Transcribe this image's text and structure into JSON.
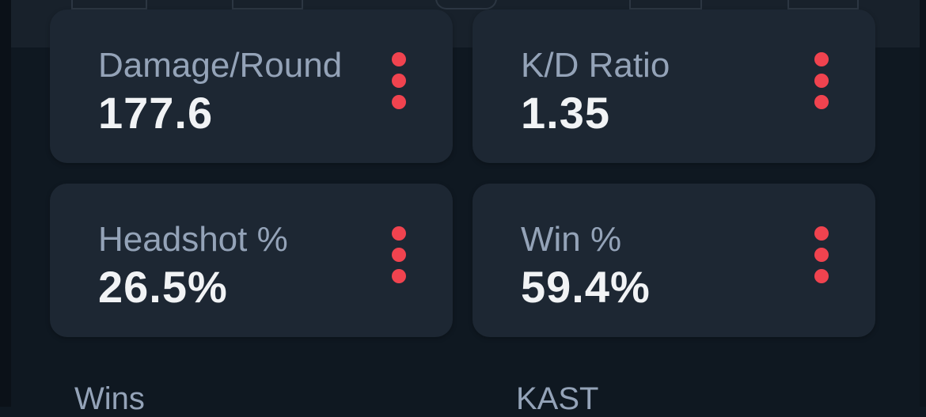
{
  "accent_color": "#f0434f",
  "stats": [
    {
      "label": "Damage/Round",
      "value": "177.6",
      "menu_icon": "more-vertical-icon"
    },
    {
      "label": "K/D Ratio",
      "value": "1.35",
      "menu_icon": "more-vertical-icon"
    },
    {
      "label": "Headshot %",
      "value": "26.5%",
      "menu_icon": "more-vertical-icon"
    },
    {
      "label": "Win %",
      "value": "59.4%",
      "menu_icon": "more-vertical-icon"
    }
  ],
  "sections": {
    "wins": "Wins",
    "kast": "KAST"
  }
}
